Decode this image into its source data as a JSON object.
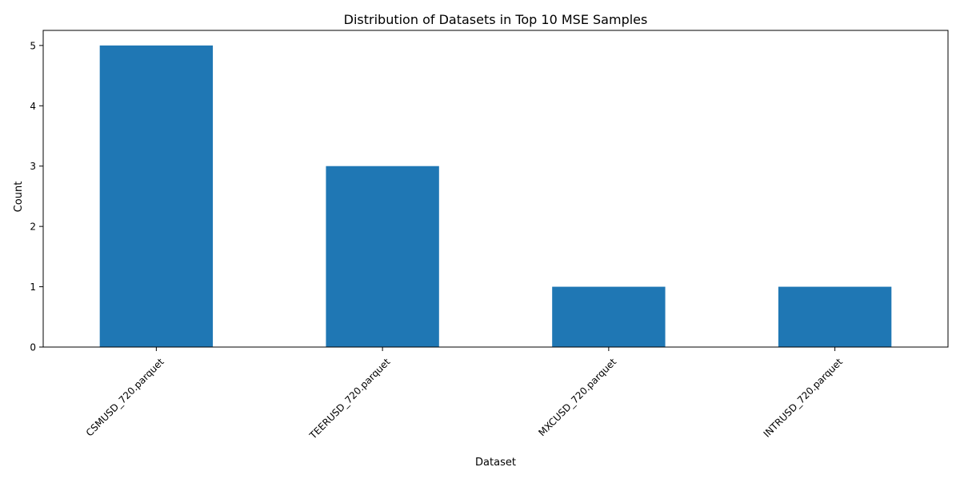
{
  "chart_data": {
    "type": "bar",
    "title": "Distribution of Datasets in Top 10 MSE Samples",
    "xlabel": "Dataset",
    "ylabel": "Count",
    "categories": [
      "CSMUSD_720.parquet",
      "TEERUSD_720.parquet",
      "MXCUSD_720.parquet",
      "INTRUSD_720.parquet"
    ],
    "values": [
      5,
      3,
      1,
      1
    ],
    "ylim": [
      0,
      5.25
    ],
    "yticks": [
      0,
      1,
      2,
      3,
      4,
      5
    ],
    "bar_color": "#1f77b4",
    "grid": false,
    "legend": "none"
  }
}
